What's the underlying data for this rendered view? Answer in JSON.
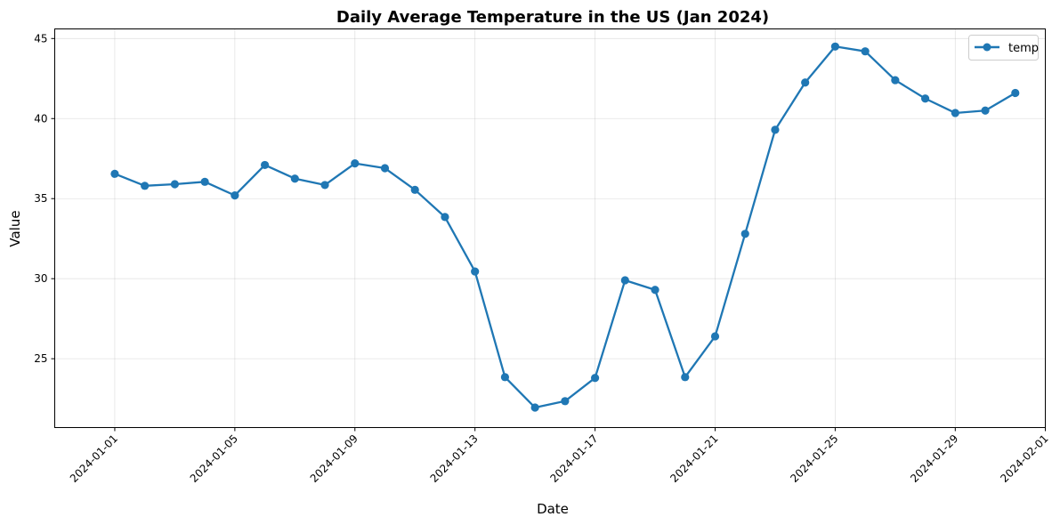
{
  "chart_data": {
    "type": "line",
    "title": "Daily Average Temperature in the US (Jan 2024)",
    "xlabel": "Date",
    "ylabel": "Value",
    "x_tick_labels": [
      "2024-01-01",
      "2024-01-05",
      "2024-01-09",
      "2024-01-13",
      "2024-01-17",
      "2024-01-21",
      "2024-01-25",
      "2024-01-29",
      "2024-02-01"
    ],
    "y_ticks": [
      25,
      30,
      35,
      40,
      45
    ],
    "ylim": [
      20.7,
      45.6
    ],
    "xlim": [
      "2023-12-30",
      "2024-02-01"
    ],
    "grid": true,
    "legend_position": "top-right",
    "x": [
      "2024-01-01",
      "2024-01-02",
      "2024-01-03",
      "2024-01-04",
      "2024-01-05",
      "2024-01-06",
      "2024-01-07",
      "2024-01-08",
      "2024-01-09",
      "2024-01-10",
      "2024-01-11",
      "2024-01-12",
      "2024-01-13",
      "2024-01-14",
      "2024-01-15",
      "2024-01-16",
      "2024-01-17",
      "2024-01-18",
      "2024-01-19",
      "2024-01-20",
      "2024-01-21",
      "2024-01-22",
      "2024-01-23",
      "2024-01-24",
      "2024-01-25",
      "2024-01-26",
      "2024-01-27",
      "2024-01-28",
      "2024-01-29",
      "2024-01-30",
      "2024-01-31"
    ],
    "series": [
      {
        "name": "temp",
        "color": "#1f77b4",
        "marker": "circle",
        "values": [
          36.55,
          35.8,
          35.9,
          36.05,
          35.2,
          37.1,
          36.25,
          35.85,
          37.2,
          36.9,
          35.55,
          33.85,
          30.45,
          23.85,
          21.95,
          22.35,
          23.8,
          29.9,
          29.3,
          23.85,
          26.4,
          32.8,
          39.3,
          42.25,
          44.5,
          44.2,
          42.4,
          41.25,
          40.35,
          40.5,
          41.6
        ]
      }
    ]
  }
}
